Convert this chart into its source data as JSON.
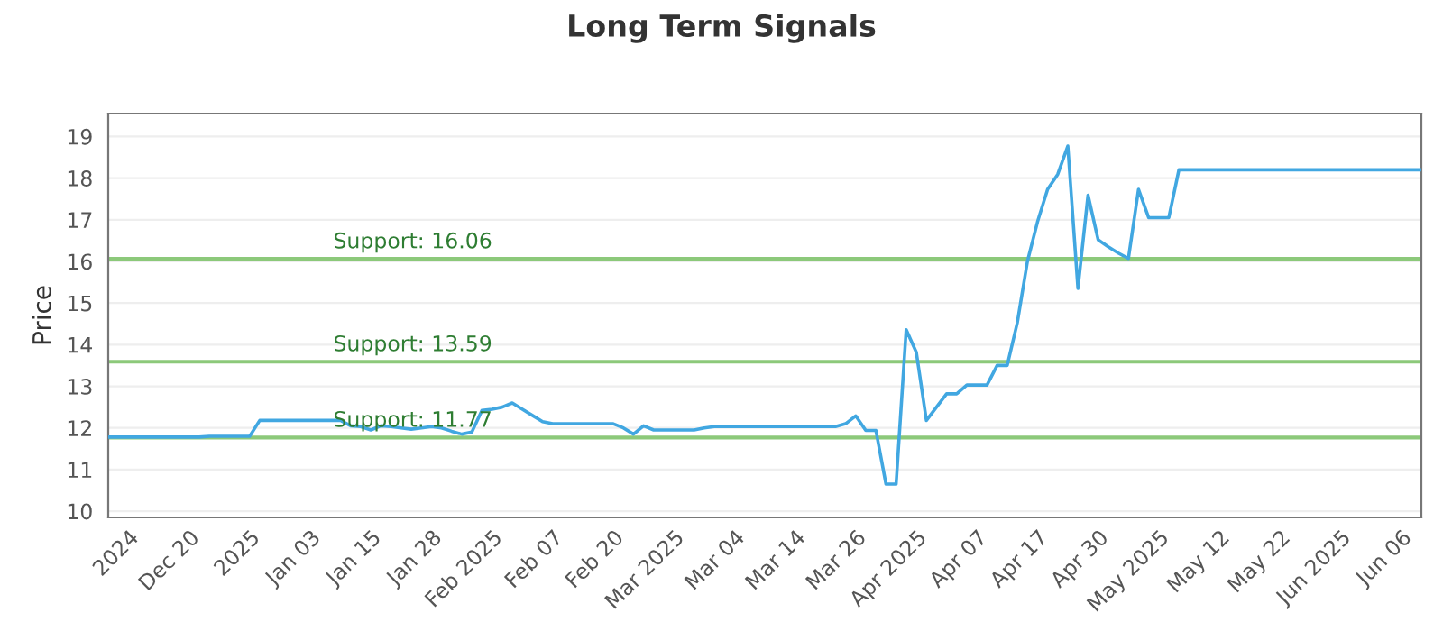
{
  "chart_data": {
    "type": "line",
    "title": "Long Term Signals",
    "ylabel": "Price",
    "categories": [
      null,
      null,
      "2024",
      null,
      null,
      null,
      null,
      null,
      "Dec 20",
      null,
      null,
      null,
      null,
      null,
      "2025",
      null,
      null,
      null,
      null,
      null,
      "Jan 03",
      null,
      null,
      null,
      null,
      null,
      "Jan 15",
      null,
      null,
      null,
      null,
      null,
      "Jan 28",
      null,
      null,
      null,
      null,
      null,
      "Feb 2025",
      null,
      null,
      null,
      null,
      null,
      "Feb 07",
      null,
      null,
      null,
      null,
      null,
      "Feb 20",
      null,
      null,
      null,
      null,
      null,
      "Mar 2025",
      null,
      null,
      null,
      null,
      null,
      "Mar 04",
      null,
      null,
      null,
      null,
      null,
      "Mar 14",
      null,
      null,
      null,
      null,
      null,
      "Mar 26",
      null,
      null,
      null,
      null,
      null,
      "Apr 2025",
      null,
      null,
      null,
      null,
      null,
      "Apr 07",
      null,
      null,
      null,
      null,
      null,
      "Apr 17",
      null,
      null,
      null,
      null,
      null,
      "Apr 30",
      null,
      null,
      null,
      null,
      null,
      "May 2025",
      null,
      null,
      null,
      null,
      null,
      "May 12",
      null,
      null,
      null,
      null,
      null,
      "May 22",
      null,
      null,
      null,
      null,
      null,
      "Jun 2025",
      null,
      null,
      null,
      null,
      null,
      "Jun 06",
      null,
      null
    ],
    "series": [
      {
        "color": "#41a7e1",
        "values": [
          11.78,
          11.78,
          11.78,
          11.78,
          11.78,
          11.78,
          11.78,
          11.78,
          11.78,
          11.78,
          11.8,
          11.8,
          11.8,
          11.8,
          11.8,
          12.18,
          12.18,
          12.18,
          12.18,
          12.18,
          12.18,
          12.18,
          12.18,
          12.18,
          12.05,
          12.03,
          11.95,
          12.05,
          12.03,
          12.0,
          11.97,
          12.0,
          12.03,
          12.0,
          11.92,
          11.85,
          11.9,
          12.42,
          12.45,
          12.5,
          12.6,
          12.45,
          12.3,
          12.15,
          12.1,
          12.1,
          12.1,
          12.1,
          12.1,
          12.1,
          12.1,
          12.0,
          11.85,
          12.05,
          11.95,
          11.95,
          11.95,
          11.95,
          11.95,
          12.0,
          12.03,
          12.03,
          12.03,
          12.03,
          12.03,
          12.03,
          12.03,
          12.03,
          12.03,
          12.03,
          12.03,
          12.03,
          12.03,
          12.1,
          12.29,
          11.94,
          11.94,
          10.65,
          10.65,
          14.36,
          13.82,
          12.18,
          12.5,
          12.82,
          12.82,
          13.03,
          13.03,
          13.03,
          13.5,
          13.5,
          14.53,
          16.0,
          16.95,
          17.73,
          18.09,
          18.77,
          15.35,
          17.59,
          16.52,
          16.35,
          16.2,
          16.07,
          17.73,
          17.05,
          17.05,
          17.05,
          18.2,
          18.2,
          18.2,
          18.2,
          18.2,
          18.2,
          18.2,
          18.2,
          18.2,
          18.2,
          18.2,
          18.2,
          18.2,
          18.2,
          18.2,
          18.2,
          18.2,
          18.2,
          18.2,
          18.2,
          18.2,
          18.2,
          18.2,
          18.2,
          18.2
        ]
      }
    ],
    "ylim": [
      9.85,
      19.55
    ],
    "yticks": [
      10,
      11,
      12,
      13,
      14,
      15,
      16,
      17,
      18,
      19
    ],
    "grid": "y",
    "marker": "none",
    "line_style": "solid",
    "ref_lines": [
      {
        "axis": "y",
        "value": 16.06,
        "label": "Support: 16.06",
        "color": "#8cc97a"
      },
      {
        "axis": "y",
        "value": 13.59,
        "label": "Support: 13.59",
        "color": "#8cc97a"
      },
      {
        "axis": "y",
        "value": 11.77,
        "label": "Support: 11.77",
        "color": "#8cc97a"
      }
    ]
  }
}
